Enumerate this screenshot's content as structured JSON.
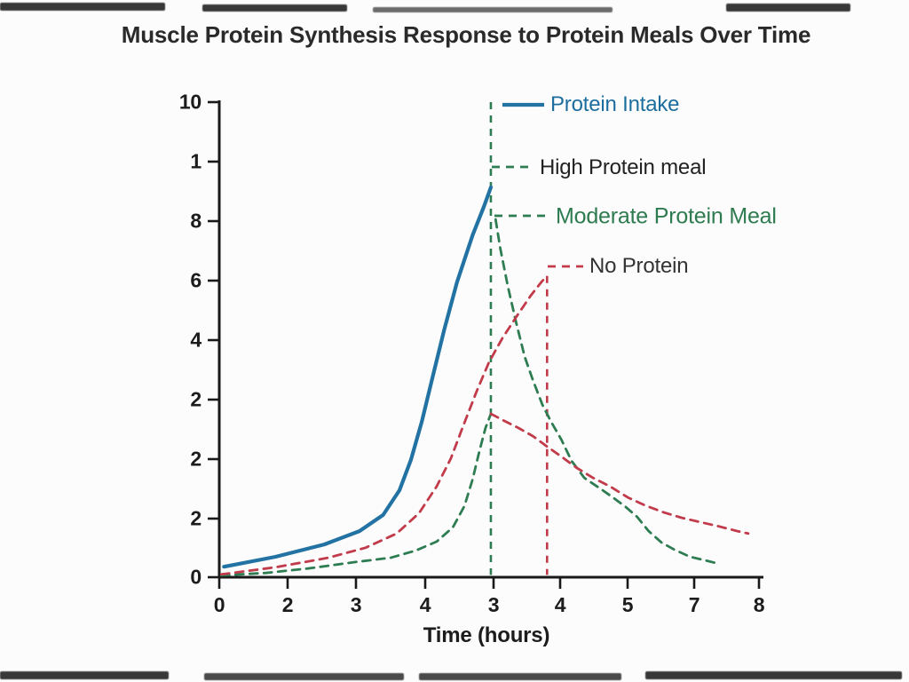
{
  "chart_data": {
    "type": "line",
    "title": "Muscle Protein Synthesis Response to Protein Meals Over Time",
    "xlabel": "Time (hours)",
    "ylabel": "",
    "x_tick_labels": [
      "0",
      "2",
      "3",
      "4",
      "3",
      "4",
      "5",
      "7",
      "8"
    ],
    "y_tick_labels": [
      "10",
      "1",
      "8",
      "6",
      "4",
      "2",
      "2",
      "2",
      "0"
    ],
    "xlim": [
      0,
      8
    ],
    "ylim": [
      0,
      10
    ],
    "grid": false,
    "legend_position": "upper right, attached to event lines",
    "colors": {
      "blue": "#2273A3",
      "green": "#2E7D52",
      "red": "#C13B4B",
      "axis": "#191919"
    },
    "series": [
      {
        "name": "Protein Intake",
        "color": "#2273A3",
        "style": "solid",
        "width": 4.2,
        "points": [
          [
            0.07,
            0.22
          ],
          [
            0.83,
            0.43
          ],
          [
            1.55,
            0.69
          ],
          [
            2.07,
            0.97
          ],
          [
            2.42,
            1.31
          ],
          [
            2.66,
            1.83
          ],
          [
            2.83,
            2.47
          ],
          [
            2.99,
            3.27
          ],
          [
            3.15,
            4.21
          ],
          [
            3.32,
            5.2
          ],
          [
            3.51,
            6.21
          ],
          [
            3.74,
            7.2
          ],
          [
            3.91,
            7.81
          ],
          [
            4.01,
            8.21
          ]
        ]
      },
      {
        "name": "Moderate Protein Meal (rising green)",
        "color": "#2E7D52",
        "style": "dashed",
        "width": 2.8,
        "points": [
          [
            0.03,
            0.04
          ],
          [
            0.69,
            0.09
          ],
          [
            1.35,
            0.19
          ],
          [
            2.01,
            0.32
          ],
          [
            2.53,
            0.41
          ],
          [
            2.9,
            0.56
          ],
          [
            3.21,
            0.75
          ],
          [
            3.45,
            1.05
          ],
          [
            3.62,
            1.5
          ],
          [
            3.74,
            2.06
          ],
          [
            3.84,
            2.65
          ],
          [
            3.93,
            3.14
          ],
          [
            4.01,
            3.44
          ]
        ]
      },
      {
        "name": "High Protein meal (falling green)",
        "color": "#2E7D52",
        "style": "dashed",
        "width": 2.8,
        "points": [
          [
            4.08,
            7.53
          ],
          [
            4.15,
            6.92
          ],
          [
            4.26,
            6.13
          ],
          [
            4.38,
            5.38
          ],
          [
            4.51,
            4.64
          ],
          [
            4.63,
            4.15
          ],
          [
            4.77,
            3.63
          ],
          [
            4.9,
            3.27
          ],
          [
            5.05,
            2.9
          ],
          [
            5.2,
            2.45
          ],
          [
            5.39,
            2.09
          ],
          [
            5.6,
            1.89
          ],
          [
            5.81,
            1.68
          ],
          [
            6.0,
            1.48
          ],
          [
            6.17,
            1.27
          ],
          [
            6.34,
            0.97
          ],
          [
            6.53,
            0.73
          ],
          [
            6.72,
            0.58
          ],
          [
            6.95,
            0.43
          ],
          [
            7.16,
            0.36
          ],
          [
            7.33,
            0.3
          ]
        ]
      },
      {
        "name": "No Protein (rising red)",
        "color": "#C13B4B",
        "style": "dashed",
        "width": 2.8,
        "points": [
          [
            0.03,
            0.06
          ],
          [
            0.83,
            0.21
          ],
          [
            1.61,
            0.41
          ],
          [
            2.16,
            0.62
          ],
          [
            2.62,
            0.92
          ],
          [
            2.95,
            1.35
          ],
          [
            3.21,
            1.91
          ],
          [
            3.42,
            2.5
          ],
          [
            3.6,
            3.18
          ],
          [
            3.8,
            3.91
          ],
          [
            3.98,
            4.52
          ],
          [
            4.18,
            5.03
          ],
          [
            4.4,
            5.51
          ],
          [
            4.6,
            5.93
          ],
          [
            4.76,
            6.22
          ],
          [
            4.84,
            6.34
          ]
        ]
      },
      {
        "name": "No Protein (falling red)",
        "color": "#C13B4B",
        "style": "dashed",
        "width": 2.8,
        "points": [
          [
            4.01,
            3.44
          ],
          [
            4.21,
            3.29
          ],
          [
            4.42,
            3.14
          ],
          [
            4.63,
            2.97
          ],
          [
            4.84,
            2.75
          ],
          [
            5.05,
            2.54
          ],
          [
            5.28,
            2.3
          ],
          [
            5.52,
            2.09
          ],
          [
            5.77,
            1.91
          ],
          [
            6.03,
            1.68
          ],
          [
            6.29,
            1.51
          ],
          [
            6.57,
            1.36
          ],
          [
            6.83,
            1.25
          ],
          [
            7.1,
            1.16
          ],
          [
            7.38,
            1.07
          ],
          [
            7.65,
            0.97
          ],
          [
            7.81,
            0.92
          ]
        ]
      }
    ],
    "markers": [
      {
        "name": "green event line",
        "x": 4.01,
        "from": 0.05,
        "to": 10.0,
        "color": "#2E7D52"
      },
      {
        "name": "red event line",
        "x": 4.84,
        "from": 0.05,
        "to": 6.34,
        "color": "#C13B4B"
      }
    ]
  },
  "legend": {
    "items": [
      {
        "label": "Protein Intake",
        "text_color": "#1D6E9F",
        "line_color": "#2273A3",
        "style": "solid"
      },
      {
        "label": "High Protein meal",
        "text_color": "#222222",
        "line_color": "#2E7D52",
        "style": "dashed"
      },
      {
        "label": "Moderate Protein Meal",
        "text_color": "#2E7B50",
        "line_color": "#2E7D52",
        "style": "dashed"
      },
      {
        "label": "No Protein",
        "text_color": "#333333",
        "line_color": "#C13B4B",
        "style": "dashed"
      }
    ]
  },
  "title": "Muscle Protein Synthesis Response to Protein Meals Over Time",
  "x_axis_title": "Time (hours)"
}
